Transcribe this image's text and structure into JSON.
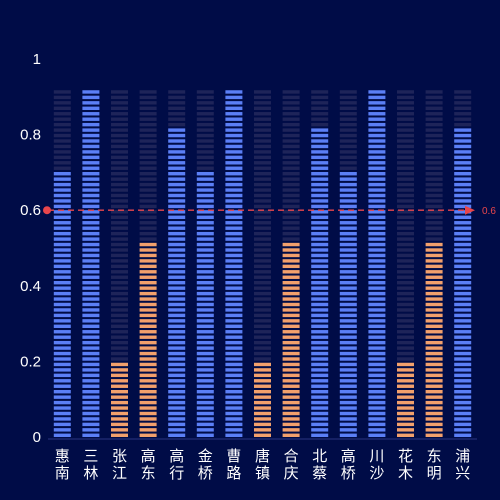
{
  "chart_data": {
    "type": "bar",
    "style": "pictorial-segmented",
    "categories": [
      "惠南",
      "三林",
      "张江",
      "高东",
      "高行",
      "金桥",
      "曹路",
      "唐镇",
      "合庆",
      "北蔡",
      "高桥",
      "川沙",
      "花木",
      "东明",
      "浦兴"
    ],
    "values": [
      0.7,
      0.92,
      0.2,
      0.52,
      0.82,
      0.7,
      0.92,
      0.2,
      0.52,
      0.82,
      0.7,
      0.92,
      0.2,
      0.52,
      0.82
    ],
    "background_max": 0.92,
    "ylim": [
      0,
      1
    ],
    "yticks": [
      "0",
      "0.2",
      "0.4",
      "0.6",
      "0.8",
      "1"
    ],
    "grid": false,
    "mark_line": {
      "value": 0.6,
      "label": "0.6"
    },
    "colors": {
      "background": "#000c47",
      "bar_high": "#5b7ff6",
      "bar_low": "#f2a06c",
      "bar_empty": "#1e2459",
      "mark_line": "#e8464c",
      "axis": "#2a3580",
      "text": "#ffffff"
    }
  }
}
